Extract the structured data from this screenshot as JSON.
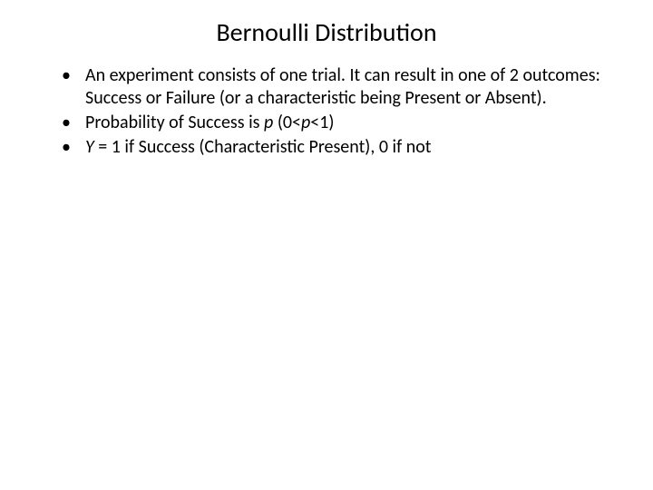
{
  "slide": {
    "title": "Bernoulli Distribution",
    "bullets": [
      {
        "parts": [
          {
            "text": "An experiment consists of one trial. It can result in one of 2 outcomes: Success or Failure (or a characteristic being Present or Absent).",
            "italic": false
          }
        ]
      },
      {
        "parts": [
          {
            "text": "Probability of Success is ",
            "italic": false
          },
          {
            "text": "p",
            "italic": true
          },
          {
            "text": "  (0<",
            "italic": false
          },
          {
            "text": "p",
            "italic": true
          },
          {
            "text": "<1)",
            "italic": false
          }
        ]
      },
      {
        "parts": [
          {
            "text": "Y",
            "italic": true
          },
          {
            "text": " = 1 if Success (Characteristic Present), 0 if not",
            "italic": false
          }
        ]
      }
    ]
  },
  "style": {
    "background_color": "#ffffff",
    "text_color": "#000000",
    "title_fontsize": 28,
    "body_fontsize": 20,
    "font_family": "Calibri"
  }
}
